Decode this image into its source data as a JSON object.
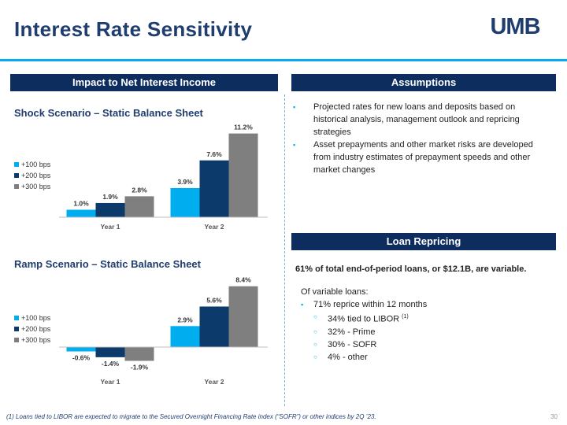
{
  "title": "Interest Rate Sensitivity",
  "logo_text": "UMB",
  "colors": {
    "series_100": "#00aeef",
    "series_200": "#0c3a6b",
    "series_300": "#7f7f7f",
    "header_bg": "#0c2d5e",
    "accent": "#00aeef"
  },
  "left_header": "Impact to Net Interest Income",
  "assumptions_header": "Assumptions",
  "assumptions": [
    "Projected rates for new loans and deposits based on historical analysis, management outlook and repricing strategies",
    "Asset prepayments and other market risks are developed from industry estimates of prepayment speeds and other market changes"
  ],
  "loan_header": "Loan Repricing",
  "loan_summary": "61% of total end-of-period loans, or $12.1B, are variable.",
  "loan_intro": "Of variable loans:",
  "loan_main": "71% reprice within 12 months",
  "loan_sub": [
    {
      "text": "34% tied to LIBOR",
      "sup": "(1)"
    },
    {
      "text": "32% - Prime"
    },
    {
      "text": "30% - SOFR"
    },
    {
      "text": "4% - other"
    }
  ],
  "footnote": "(1) Loans tied to LIBOR are expected to migrate to the Secured Overnight Financing Rate index (“SOFR”) or other indices by 2Q ’23.",
  "page_number": "30",
  "chart_data": [
    {
      "type": "bar",
      "title": "Shock Scenario – Static Balance Sheet",
      "categories": [
        "Year 1",
        "Year 2"
      ],
      "series": [
        {
          "name": "+100 bps",
          "values": [
            1.0,
            3.9
          ],
          "labels": [
            "1.0%",
            "3.9%"
          ]
        },
        {
          "name": "+200 bps",
          "values": [
            1.9,
            7.6
          ],
          "labels": [
            "1.9%",
            "7.6%"
          ]
        },
        {
          "name": "+300 bps",
          "values": [
            2.8,
            11.2
          ],
          "labels": [
            "2.8%",
            "11.2%"
          ]
        }
      ],
      "legend_position": "left"
    },
    {
      "type": "bar",
      "title": "Ramp Scenario – Static Balance Sheet",
      "categories": [
        "Year 1",
        "Year 2"
      ],
      "series": [
        {
          "name": "+100 bps",
          "values": [
            -0.6,
            2.9
          ],
          "labels": [
            "-0.6%",
            "2.9%"
          ]
        },
        {
          "name": "+200 bps",
          "values": [
            -1.4,
            5.6
          ],
          "labels": [
            "-1.4%",
            "5.6%"
          ]
        },
        {
          "name": "+300 bps",
          "values": [
            -1.9,
            8.4
          ],
          "labels": [
            "-1.9%",
            "8.4%"
          ]
        }
      ],
      "legend_position": "left"
    }
  ]
}
